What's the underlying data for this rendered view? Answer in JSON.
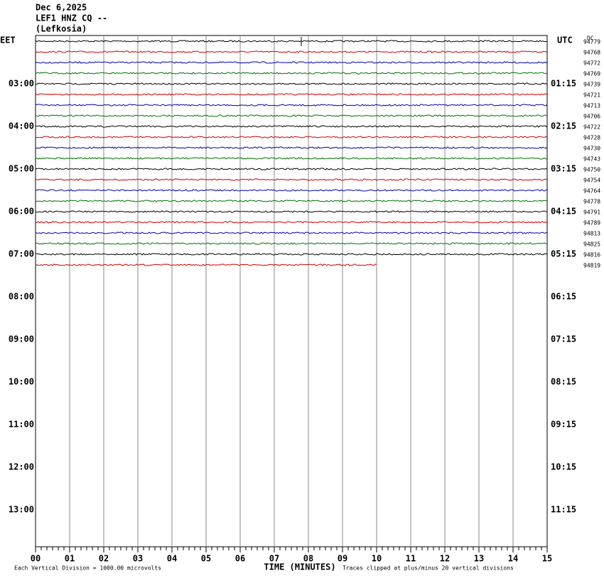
{
  "header": {
    "date": "Dec 6,2025",
    "station": "LEF1 HNZ CQ --",
    "location": "(Lefkosia)"
  },
  "left_timezone": "EET",
  "right_timezone": "UTC",
  "dc_header": "DC",
  "left_hours": [
    "03:00",
    "04:00",
    "05:00",
    "06:00",
    "07:00",
    "08:00",
    "09:00",
    "10:00",
    "11:00",
    "12:00",
    "13:00"
  ],
  "right_hours": [
    "01:15",
    "02:15",
    "03:15",
    "04:15",
    "05:15",
    "06:15",
    "07:15",
    "08:15",
    "09:15",
    "10:15",
    "11:15"
  ],
  "dc_offsets": [
    "94779",
    "94768",
    "94772",
    "94769",
    "94739",
    "94721",
    "94713",
    "94706",
    "94722",
    "94728",
    "94730",
    "94743",
    "94750",
    "94754",
    "94764",
    "94778",
    "94791",
    "94789",
    "94813",
    "94825",
    "94816",
    "94819"
  ],
  "minute_labels": [
    "00",
    "01",
    "02",
    "03",
    "04",
    "05",
    "06",
    "07",
    "08",
    "09",
    "10",
    "11",
    "12",
    "13",
    "14",
    "15"
  ],
  "x_axis_title": "TIME (MINUTES)",
  "footer": {
    "scale_note": "Each Vertical Division = 1000.00 microvolts",
    "clip_note": "Traces clipped at plus/minus 20 vertical divisions"
  }
}
